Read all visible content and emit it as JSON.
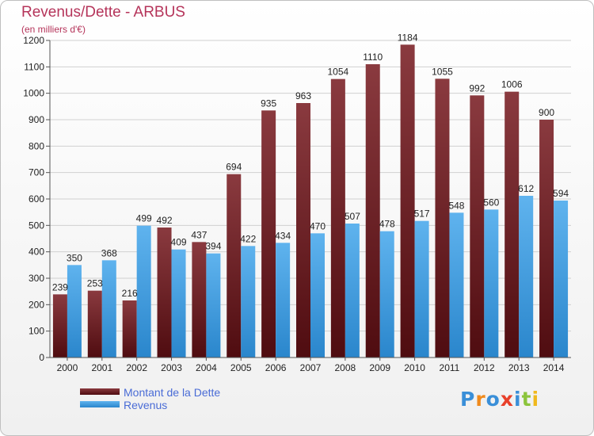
{
  "header": {
    "title": "Revenus/Dette - ARBUS",
    "subtitle": "(en milliers d'€)"
  },
  "colors": {
    "dette_top": "#8a3a3f",
    "dette_bottom": "#4f0c10",
    "revenus_top": "#5fb3ee",
    "revenus_bottom": "#2a86cc",
    "grid": "#d0d0d0",
    "axis_text": "#222222"
  },
  "legend": {
    "dette_label": "Montant de la Dette",
    "revenus_label": "Revenus"
  },
  "logo": {
    "letters": [
      {
        "ch": "P",
        "color": "#3a8fd8"
      },
      {
        "ch": "r",
        "color": "#f08a1c"
      },
      {
        "ch": "o",
        "color": "#3a8fd8"
      },
      {
        "ch": "x",
        "color": "#e8402a"
      },
      {
        "ch": "i",
        "color": "#3a8fd8"
      },
      {
        "ch": "t",
        "color": "#8cc43c"
      },
      {
        "ch": "i",
        "color": "#f0b81c"
      }
    ]
  },
  "chart_data": {
    "type": "bar",
    "title": "Revenus/Dette - ARBUS",
    "subtitle": "(en milliers d'€)",
    "categories": [
      "2000",
      "2001",
      "2002",
      "2003",
      "2004",
      "2005",
      "2006",
      "2007",
      "2008",
      "2009",
      "2010",
      "2011",
      "2012",
      "2013",
      "2014"
    ],
    "series": [
      {
        "name": "Montant de la Dette",
        "values": [
          239,
          253,
          216,
          492,
          437,
          694,
          935,
          963,
          1054,
          1110,
          1184,
          1055,
          992,
          1006,
          900
        ]
      },
      {
        "name": "Revenus",
        "values": [
          350,
          368,
          499,
          409,
          394,
          422,
          434,
          470,
          507,
          478,
          517,
          548,
          560,
          612,
          594
        ]
      }
    ],
    "ylim": [
      0,
      1200
    ],
    "yticks": [
      0,
      100,
      200,
      300,
      400,
      500,
      600,
      700,
      800,
      900,
      1000,
      1100,
      1200
    ],
    "grid": true,
    "legend_position": "bottom-left"
  }
}
